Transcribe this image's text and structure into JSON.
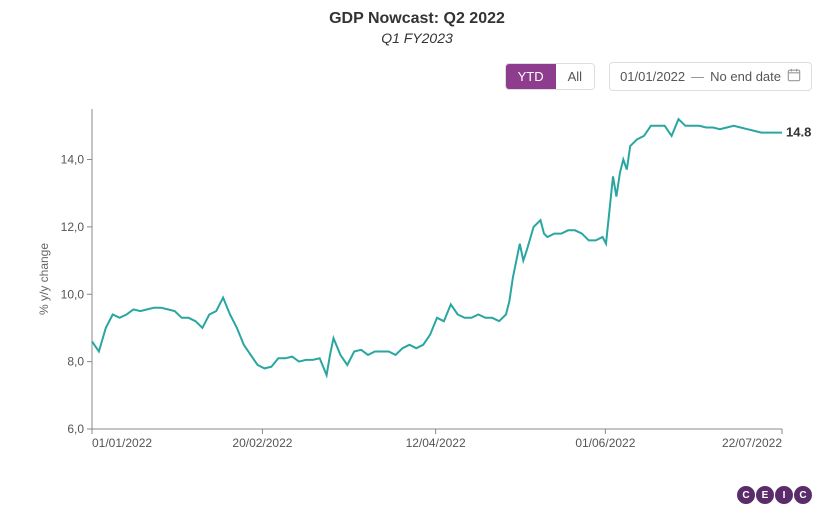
{
  "header": {
    "title": "GDP Nowcast: Q2 2022",
    "subtitle": "Q1 FY2023"
  },
  "controls": {
    "ranges": [
      {
        "label": "YTD",
        "active": true
      },
      {
        "label": "All",
        "active": false
      }
    ],
    "date_start": "01/01/2022",
    "date_sep": "—",
    "date_end": "No end date"
  },
  "chart": {
    "type": "line",
    "y_label": "% y/y change",
    "line_color": "#2aa6a0",
    "axis_color": "#888888",
    "text_color": "#555555",
    "background_color": "#ffffff",
    "ylim": [
      6.0,
      15.5
    ],
    "y_ticks": [
      6.0,
      8.0,
      10.0,
      12.0,
      14.0
    ],
    "y_tick_labels": [
      "6,0",
      "8,0",
      "10,0",
      "12,0",
      "14,0"
    ],
    "x_tick_positions": [
      0,
      0.247,
      0.498,
      0.744,
      1.0
    ],
    "x_tick_labels": [
      "01/01/2022",
      "20/02/2022",
      "12/04/2022",
      "01/06/2022",
      "22/07/2022"
    ],
    "last_value_label": "14.8",
    "series": [
      [
        0.0,
        8.6
      ],
      [
        0.01,
        8.3
      ],
      [
        0.02,
        9.0
      ],
      [
        0.03,
        9.4
      ],
      [
        0.04,
        9.3
      ],
      [
        0.05,
        9.4
      ],
      [
        0.06,
        9.55
      ],
      [
        0.07,
        9.5
      ],
      [
        0.08,
        9.55
      ],
      [
        0.09,
        9.6
      ],
      [
        0.1,
        9.6
      ],
      [
        0.11,
        9.55
      ],
      [
        0.12,
        9.5
      ],
      [
        0.13,
        9.3
      ],
      [
        0.14,
        9.3
      ],
      [
        0.15,
        9.2
      ],
      [
        0.16,
        9.0
      ],
      [
        0.17,
        9.4
      ],
      [
        0.18,
        9.5
      ],
      [
        0.19,
        9.9
      ],
      [
        0.2,
        9.4
      ],
      [
        0.21,
        9.0
      ],
      [
        0.22,
        8.5
      ],
      [
        0.23,
        8.2
      ],
      [
        0.24,
        7.9
      ],
      [
        0.25,
        7.8
      ],
      [
        0.26,
        7.85
      ],
      [
        0.27,
        8.1
      ],
      [
        0.28,
        8.1
      ],
      [
        0.29,
        8.15
      ],
      [
        0.3,
        8.0
      ],
      [
        0.31,
        8.05
      ],
      [
        0.32,
        8.05
      ],
      [
        0.33,
        8.1
      ],
      [
        0.34,
        7.6
      ],
      [
        0.345,
        8.2
      ],
      [
        0.35,
        8.7
      ],
      [
        0.36,
        8.2
      ],
      [
        0.37,
        7.9
      ],
      [
        0.38,
        8.3
      ],
      [
        0.39,
        8.35
      ],
      [
        0.4,
        8.2
      ],
      [
        0.41,
        8.3
      ],
      [
        0.42,
        8.3
      ],
      [
        0.43,
        8.3
      ],
      [
        0.44,
        8.2
      ],
      [
        0.45,
        8.4
      ],
      [
        0.46,
        8.5
      ],
      [
        0.47,
        8.4
      ],
      [
        0.48,
        8.5
      ],
      [
        0.49,
        8.8
      ],
      [
        0.5,
        9.3
      ],
      [
        0.51,
        9.2
      ],
      [
        0.52,
        9.7
      ],
      [
        0.53,
        9.4
      ],
      [
        0.54,
        9.3
      ],
      [
        0.55,
        9.3
      ],
      [
        0.56,
        9.4
      ],
      [
        0.57,
        9.3
      ],
      [
        0.58,
        9.3
      ],
      [
        0.59,
        9.2
      ],
      [
        0.6,
        9.4
      ],
      [
        0.605,
        9.8
      ],
      [
        0.61,
        10.5
      ],
      [
        0.62,
        11.5
      ],
      [
        0.625,
        11.0
      ],
      [
        0.63,
        11.3
      ],
      [
        0.64,
        12.0
      ],
      [
        0.65,
        12.2
      ],
      [
        0.655,
        11.8
      ],
      [
        0.66,
        11.7
      ],
      [
        0.67,
        11.8
      ],
      [
        0.68,
        11.8
      ],
      [
        0.69,
        11.9
      ],
      [
        0.7,
        11.9
      ],
      [
        0.71,
        11.8
      ],
      [
        0.72,
        11.6
      ],
      [
        0.73,
        11.6
      ],
      [
        0.74,
        11.7
      ],
      [
        0.745,
        11.5
      ],
      [
        0.75,
        12.5
      ],
      [
        0.755,
        13.5
      ],
      [
        0.76,
        12.9
      ],
      [
        0.765,
        13.6
      ],
      [
        0.77,
        14.0
      ],
      [
        0.775,
        13.7
      ],
      [
        0.78,
        14.4
      ],
      [
        0.79,
        14.6
      ],
      [
        0.8,
        14.7
      ],
      [
        0.81,
        15.0
      ],
      [
        0.82,
        15.0
      ],
      [
        0.83,
        15.0
      ],
      [
        0.84,
        14.7
      ],
      [
        0.85,
        15.2
      ],
      [
        0.86,
        15.0
      ],
      [
        0.87,
        15.0
      ],
      [
        0.88,
        15.0
      ],
      [
        0.89,
        14.95
      ],
      [
        0.9,
        14.95
      ],
      [
        0.91,
        14.9
      ],
      [
        0.92,
        14.95
      ],
      [
        0.93,
        15.0
      ],
      [
        0.94,
        14.95
      ],
      [
        0.95,
        14.9
      ],
      [
        0.96,
        14.85
      ],
      [
        0.97,
        14.8
      ],
      [
        0.98,
        14.8
      ],
      [
        0.99,
        14.8
      ],
      [
        1.0,
        14.8
      ]
    ]
  },
  "logo": {
    "letters": [
      "C",
      "E",
      "I",
      "C"
    ]
  }
}
